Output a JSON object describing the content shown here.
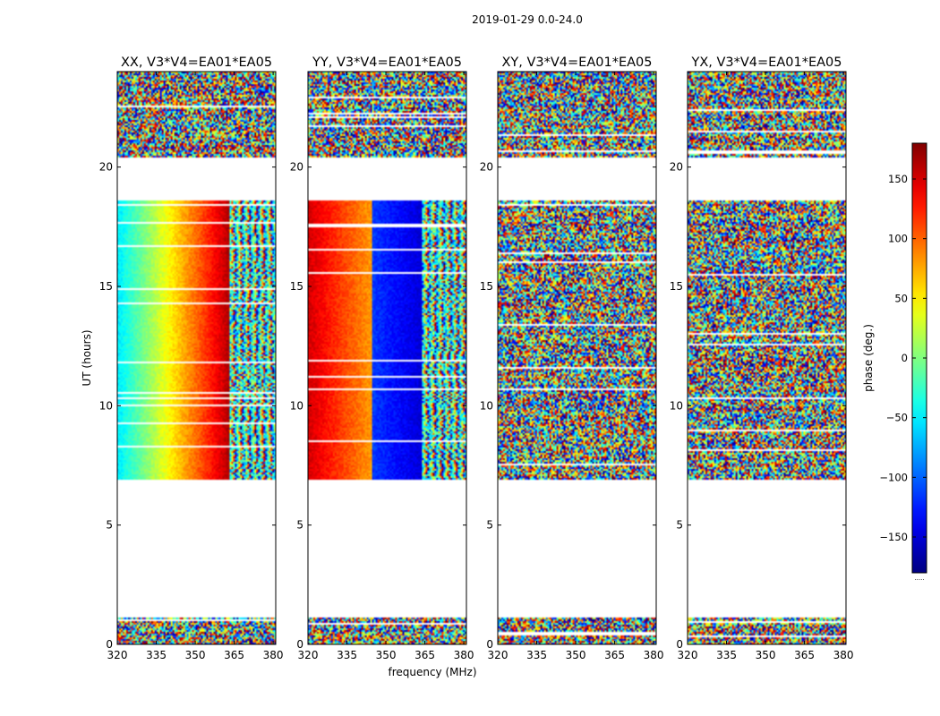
{
  "figure": {
    "suptitle": "2019-01-29 0.0-24.0",
    "xlabel": "frequency (MHz)",
    "ylabel": "UT (hours)"
  },
  "chart_data": {
    "type": "heatmap",
    "title": "2019-01-29 0.0-24.0",
    "xlabel": "frequency (MHz)",
    "ylabel": "UT (hours)",
    "xlim": [
      320,
      381
    ],
    "ylim": [
      0,
      24
    ],
    "x_ticks": [
      320,
      335,
      350,
      365,
      380
    ],
    "y_ticks": [
      0,
      5,
      10,
      15,
      20
    ],
    "panels": [
      {
        "title": "XX, V3*V4=EA01*EA05",
        "mode": "smooth"
      },
      {
        "title": "YY, V3*V4=EA01*EA05",
        "mode": "smooth_wide"
      },
      {
        "title": "XY, V3*V4=EA01*EA05",
        "mode": "noisy"
      },
      {
        "title": "YX, V3*V4=EA01*EA05",
        "mode": "noisy"
      }
    ],
    "data_time_ranges_hours": [
      [
        0.0,
        1.1
      ],
      [
        6.9,
        18.6
      ],
      [
        20.4,
        24.0
      ]
    ],
    "colorbar": {
      "label": "phase (deg.)",
      "vmin": -180,
      "vmax": 180,
      "ticks": [
        -150,
        -100,
        -50,
        0,
        50,
        100,
        150
      ],
      "tick_labels": [
        "−150",
        "−100",
        "−50",
        "0",
        "50",
        "100",
        "150"
      ],
      "colormap": "jet",
      "footer": "....."
    }
  }
}
